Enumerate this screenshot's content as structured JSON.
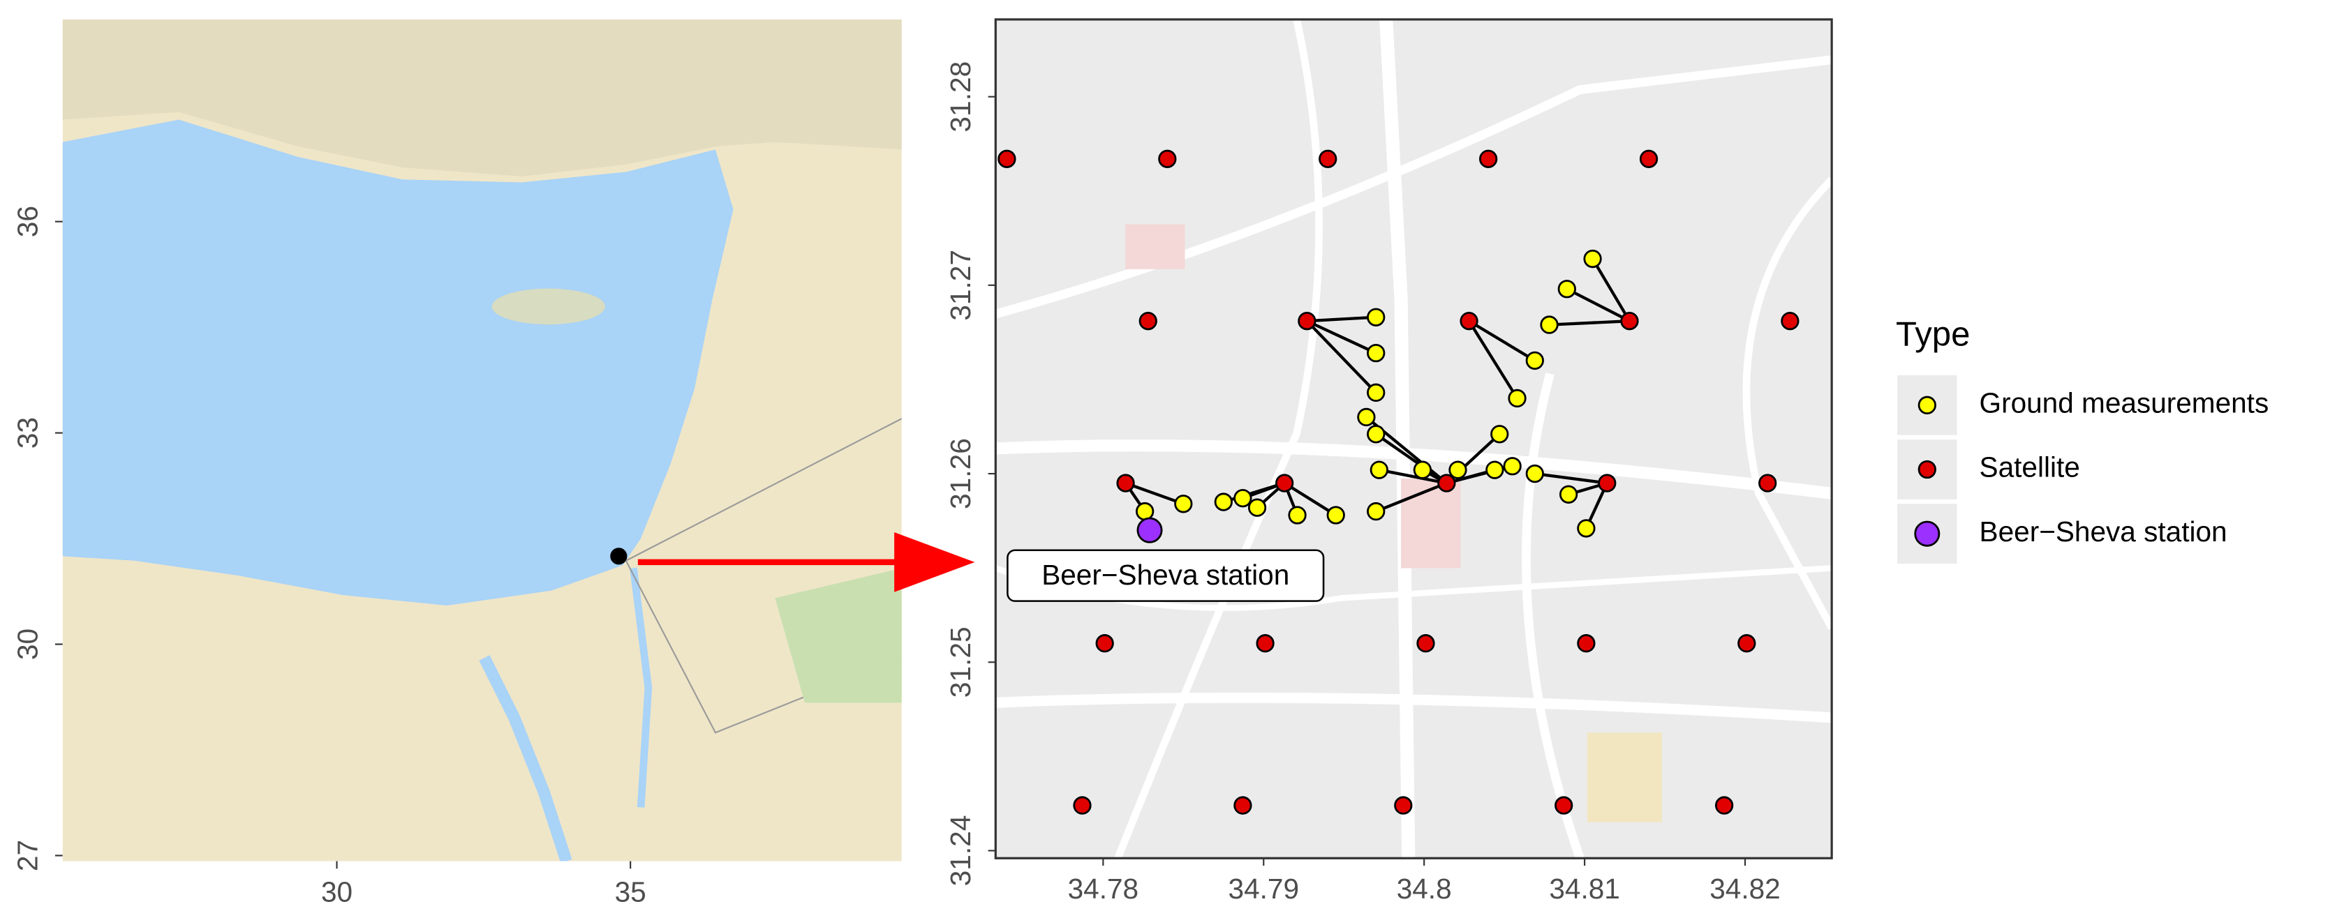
{
  "chart_data": [
    {
      "type": "scatter",
      "xlim": [
        25.33,
        39.62
      ],
      "ylim": [
        26.92,
        38.87
      ],
      "xticks": [
        30,
        35
      ],
      "yticks": [
        27,
        30,
        33,
        36
      ],
      "series": [
        {
          "color": "#000000",
          "x": [
            34.8
          ],
          "y": [
            31.25
          ]
        }
      ]
    },
    {
      "type": "scatter",
      "xlim": [
        34.7733,
        34.8254
      ],
      "ylim": [
        31.2396,
        31.2841
      ],
      "xticks": [
        34.78,
        34.79,
        34.8,
        34.81,
        34.82
      ],
      "yticks": [
        31.24,
        31.25,
        31.26,
        31.27,
        31.28
      ],
      "legend_title": "Type",
      "legend": "right",
      "annotation": "Beer−Sheva station",
      "series": [
        {
          "name": "Ground measurements",
          "color": "#ffff00",
          "x": [
            34.797,
            34.797,
            34.797,
            34.7964,
            34.797,
            34.8105,
            34.8089,
            34.8078,
            34.8069,
            34.8058,
            34.8047,
            34.8055,
            34.8044,
            34.8021,
            34.7999,
            34.7972,
            34.8069,
            34.809,
            34.8101,
            34.7826,
            34.785,
            34.7875,
            34.7887,
            34.7896,
            34.7921,
            34.7945,
            34.797
          ],
          "y": [
            31.2683,
            31.2664,
            31.2643,
            31.263,
            31.2621,
            31.2714,
            31.2698,
            31.2679,
            31.266,
            31.264,
            31.2621,
            31.2604,
            31.2602,
            31.2602,
            31.2602,
            31.2602,
            31.26,
            31.2589,
            31.2571,
            31.258,
            31.2584,
            31.2585,
            31.2587,
            31.2582,
            31.2578,
            31.2578,
            31.258
          ]
        },
        {
          "name": "Satellite",
          "color": "#e00000",
          "x": [
            34.774,
            34.784,
            34.794,
            34.804,
            34.814,
            34.7828,
            34.7927,
            34.8028,
            34.8128,
            34.8228,
            34.7814,
            34.7913,
            34.8014,
            34.8114,
            34.8214,
            34.7801,
            34.7901,
            34.8001,
            34.8101,
            34.8201,
            34.7787,
            34.7887,
            34.7987,
            34.8087,
            34.8187
          ],
          "y": [
            31.2767,
            31.2767,
            31.2767,
            31.2767,
            31.2767,
            31.2681,
            31.2681,
            31.2681,
            31.2681,
            31.2681,
            31.2595,
            31.2595,
            31.2595,
            31.2595,
            31.2595,
            31.251,
            31.251,
            31.251,
            31.251,
            31.251,
            31.2424,
            31.2424,
            31.2424,
            31.2424,
            31.2424
          ]
        },
        {
          "name": "Beer−Sheva station",
          "color": "#9b30ff",
          "x": [
            34.7829
          ],
          "y": [
            31.257
          ]
        }
      ]
    }
  ]
}
